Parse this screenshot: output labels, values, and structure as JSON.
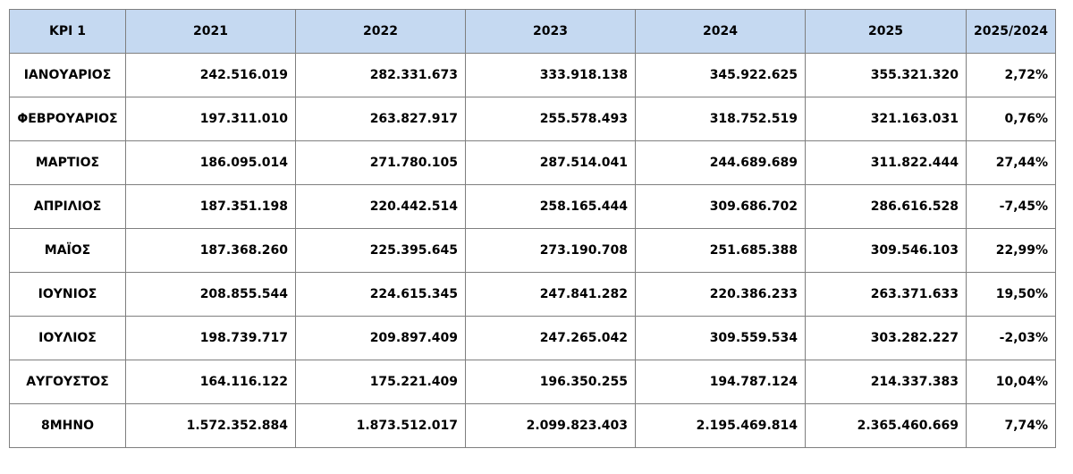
{
  "table": {
    "headers": [
      "KPI 1",
      "2021",
      "2022",
      "2023",
      "2024",
      "2025",
      "2025/2024"
    ],
    "rows": [
      [
        "ΙΑΝΟΥΑΡΙΟΣ",
        "242.516.019",
        "282.331.673",
        "333.918.138",
        "345.922.625",
        "355.321.320",
        "2,72%"
      ],
      [
        "ΦΕΒΡΟΥΑΡΙΟΣ",
        "197.311.010",
        "263.827.917",
        "255.578.493",
        "318.752.519",
        "321.163.031",
        "0,76%"
      ],
      [
        "ΜΑΡΤΙΟΣ",
        "186.095.014",
        "271.780.105",
        "287.514.041",
        "244.689.689",
        "311.822.444",
        "27,44%"
      ],
      [
        "ΑΠΡΙΛΙΟΣ",
        "187.351.198",
        "220.442.514",
        "258.165.444",
        "309.686.702",
        "286.616.528",
        "-7,45%"
      ],
      [
        "ΜΑΪΟΣ",
        "187.368.260",
        "225.395.645",
        "273.190.708",
        "251.685.388",
        "309.546.103",
        "22,99%"
      ],
      [
        "ΙΟΥΝΙΟΣ",
        "208.855.544",
        "224.615.345",
        "247.841.282",
        "220.386.233",
        "263.371.633",
        "19,50%"
      ],
      [
        "ΙΟΥΛΙΟΣ",
        "198.739.717",
        "209.897.409",
        "247.265.042",
        "309.559.534",
        "303.282.227",
        "-2,03%"
      ],
      [
        "ΑΥΓΟΥΣΤΟΣ",
        "164.116.122",
        "175.221.409",
        "196.350.255",
        "194.787.124",
        "214.337.383",
        "10,04%"
      ],
      [
        "8ΜΗΝΟ",
        "1.572.352.884",
        "1.873.512.017",
        "2.099.823.403",
        "2.195.469.814",
        "2.365.460.669",
        "7,74%"
      ]
    ]
  }
}
